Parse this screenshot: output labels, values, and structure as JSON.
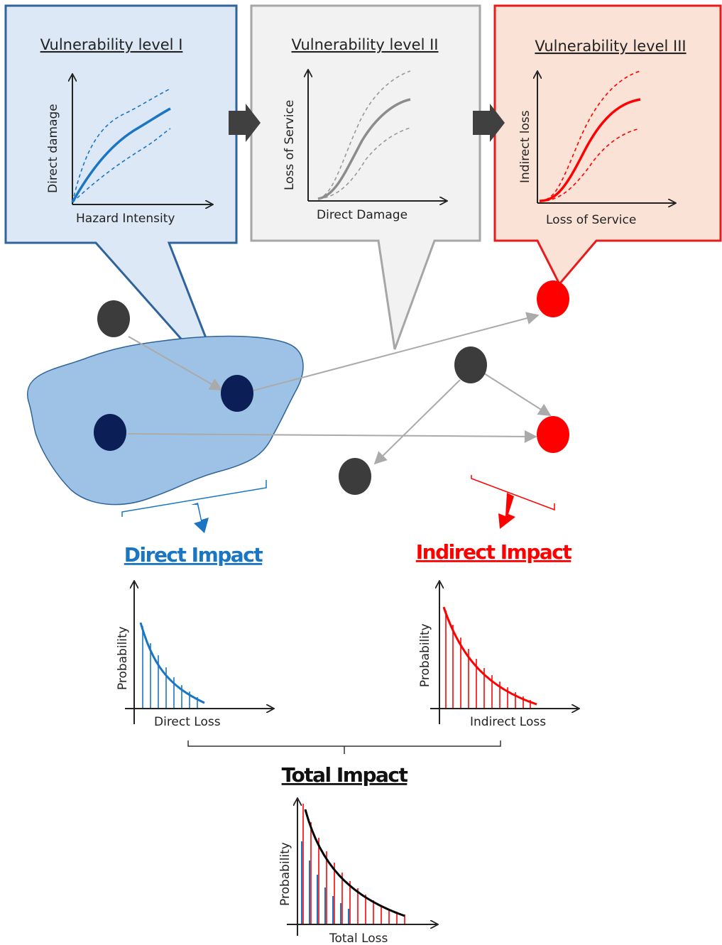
{
  "colors": {
    "blue": "#1a75c2",
    "gray": "#8c8c8c",
    "red": "#ff0000",
    "navy": "#0b1e55",
    "dark_node": "#3c3c3c",
    "region_fill": "#9ec2e6",
    "panel1_fill": "#dce8f6",
    "panel2_fill": "#f2f2f2",
    "panel3_fill": "#fbe2d6"
  },
  "vulnerability": [
    {
      "title": "Vulnerability level I",
      "xlabel": "Hazard Intensity",
      "ylabel": "Direct damage"
    },
    {
      "title": "Vulnerability level II",
      "xlabel": "Direct Damage",
      "ylabel": "Loss of Service"
    },
    {
      "title": "Vulnerability level III",
      "xlabel": "Loss of Service",
      "ylabel": "Indirect loss"
    }
  ],
  "impacts": {
    "direct": {
      "title": "Direct Impact",
      "xlabel": "Direct Loss",
      "ylabel": "Probability"
    },
    "indirect": {
      "title": "Indirect Impact",
      "xlabel": "Indirect Loss",
      "ylabel": "Probability"
    },
    "total": {
      "title": "Total Impact",
      "xlabel": "Total Loss",
      "ylabel": "Probability"
    }
  }
}
